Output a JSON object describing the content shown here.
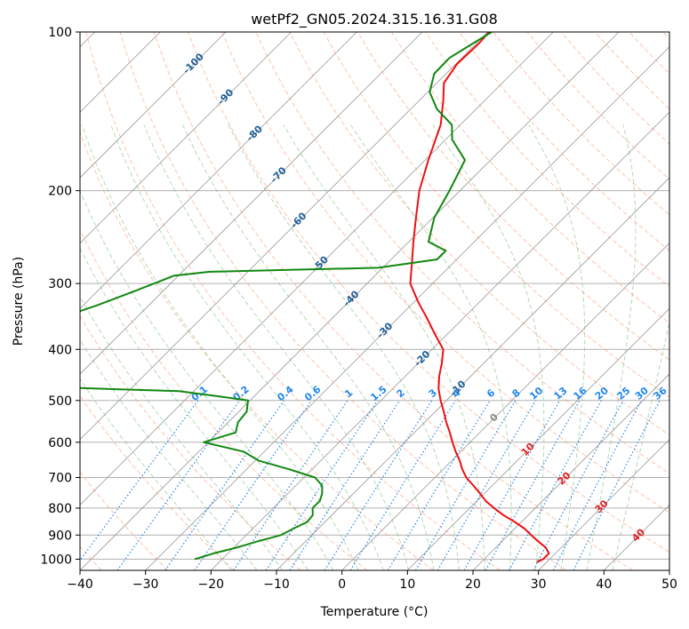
{
  "chart_data": {
    "type": "line",
    "subtype": "skew-t log-p",
    "title": "wetPf2_GN05.2024.315.16.31.G08",
    "xlabel": "Temperature (°C)",
    "ylabel": "Pressure (hPa)",
    "xlim": [
      -40,
      50
    ],
    "ylim": [
      1050,
      100
    ],
    "y_scale": "log",
    "x_ticks": [
      -40,
      -30,
      -20,
      -10,
      0,
      10,
      20,
      30,
      40,
      50
    ],
    "y_ticks": [
      100,
      200,
      300,
      400,
      500,
      600,
      700,
      800,
      900,
      1000
    ],
    "grid": true,
    "colors": {
      "temperature": "#ee1111",
      "dewpoint": "#118811",
      "isotherm_label": "#1f5f99",
      "mixing_ratio": "#2288ee",
      "dry_adiabat": "#ff9977",
      "moist_adiabat": "#77bb77",
      "isotherm": "#999999",
      "grid": "#b0b0b0"
    },
    "series": [
      {
        "name": "temperature",
        "points": [
          [
            1013,
            28.5
          ],
          [
            1000,
            29.0
          ],
          [
            975,
            29.0
          ],
          [
            950,
            27.6
          ],
          [
            925,
            25.5
          ],
          [
            900,
            23.5
          ],
          [
            875,
            21.5
          ],
          [
            850,
            19.0
          ],
          [
            825,
            16.2
          ],
          [
            800,
            13.7
          ],
          [
            775,
            11.3
          ],
          [
            750,
            9.3
          ],
          [
            725,
            7.1
          ],
          [
            700,
            4.8
          ],
          [
            675,
            2.9
          ],
          [
            650,
            1.2
          ],
          [
            625,
            -0.8
          ],
          [
            600,
            -2.7
          ],
          [
            575,
            -4.6
          ],
          [
            550,
            -6.7
          ],
          [
            525,
            -8.7
          ],
          [
            500,
            -10.9
          ],
          [
            475,
            -13.0
          ],
          [
            450,
            -14.8
          ],
          [
            425,
            -16.4
          ],
          [
            400,
            -18.3
          ],
          [
            375,
            -21.8
          ],
          [
            350,
            -25.4
          ],
          [
            325,
            -29.4
          ],
          [
            300,
            -33.4
          ],
          [
            275,
            -36.2
          ],
          [
            250,
            -39.3
          ],
          [
            225,
            -42.6
          ],
          [
            200,
            -46.2
          ],
          [
            175,
            -49.5
          ],
          [
            150,
            -53.0
          ],
          [
            135,
            -56.3
          ],
          [
            125,
            -58.9
          ],
          [
            115,
            -59.8
          ],
          [
            105,
            -59.6
          ],
          [
            100,
            -59.8
          ]
        ]
      },
      {
        "name": "dewpoint",
        "points": [
          [
            1000,
            -24.2
          ],
          [
            975,
            -22.2
          ],
          [
            950,
            -19.5
          ],
          [
            925,
            -17.3
          ],
          [
            900,
            -14.7
          ],
          [
            875,
            -13.8
          ],
          [
            850,
            -12.7
          ],
          [
            825,
            -12.9
          ],
          [
            800,
            -14.0
          ],
          [
            775,
            -14.0
          ],
          [
            750,
            -14.8
          ],
          [
            725,
            -16.0
          ],
          [
            700,
            -18.3
          ],
          [
            675,
            -23.6
          ],
          [
            650,
            -29.5
          ],
          [
            625,
            -33.2
          ],
          [
            600,
            -40.7
          ],
          [
            575,
            -37.3
          ],
          [
            550,
            -38.5
          ],
          [
            525,
            -38.8
          ],
          [
            500,
            -40.3
          ],
          [
            490,
            -46.0
          ],
          [
            480,
            -52.3
          ],
          [
            470,
            -76.8
          ],
          [
            460,
            -80.4
          ],
          [
            440,
            -83.4
          ],
          [
            420,
            -87.9
          ],
          [
            400,
            -88.4
          ],
          [
            375,
            -87.8
          ],
          [
            350,
            -81.9
          ],
          [
            330,
            -77.9
          ],
          [
            310,
            -74.3
          ],
          [
            290,
            -70.7
          ],
          [
            285,
            -65.8
          ],
          [
            280,
            -40.7
          ],
          [
            270,
            -33.0
          ],
          [
            260,
            -33.0
          ],
          [
            250,
            -37.0
          ],
          [
            225,
            -39.8
          ],
          [
            200,
            -41.6
          ],
          [
            175,
            -43.9
          ],
          [
            160,
            -49.0
          ],
          [
            150,
            -51.3
          ],
          [
            140,
            -56.0
          ],
          [
            130,
            -59.7
          ],
          [
            120,
            -61.8
          ],
          [
            112,
            -61.9
          ],
          [
            105,
            -60.5
          ],
          [
            100,
            -59.4
          ]
        ]
      }
    ],
    "isotherm_labels": [
      "-100",
      "-90",
      "-80",
      "-70",
      "-60",
      "-50",
      "-40",
      "-30",
      "-20",
      "-10",
      "0",
      "10",
      "20",
      "30",
      "40"
    ],
    "mixing_ratio_labels": [
      "0.1",
      "0.2",
      "0.4",
      "0.6",
      "1",
      "1.5",
      "2",
      "3",
      "4",
      "6",
      "8",
      "10",
      "13",
      "16",
      "20",
      "25",
      "30",
      "36"
    ]
  }
}
